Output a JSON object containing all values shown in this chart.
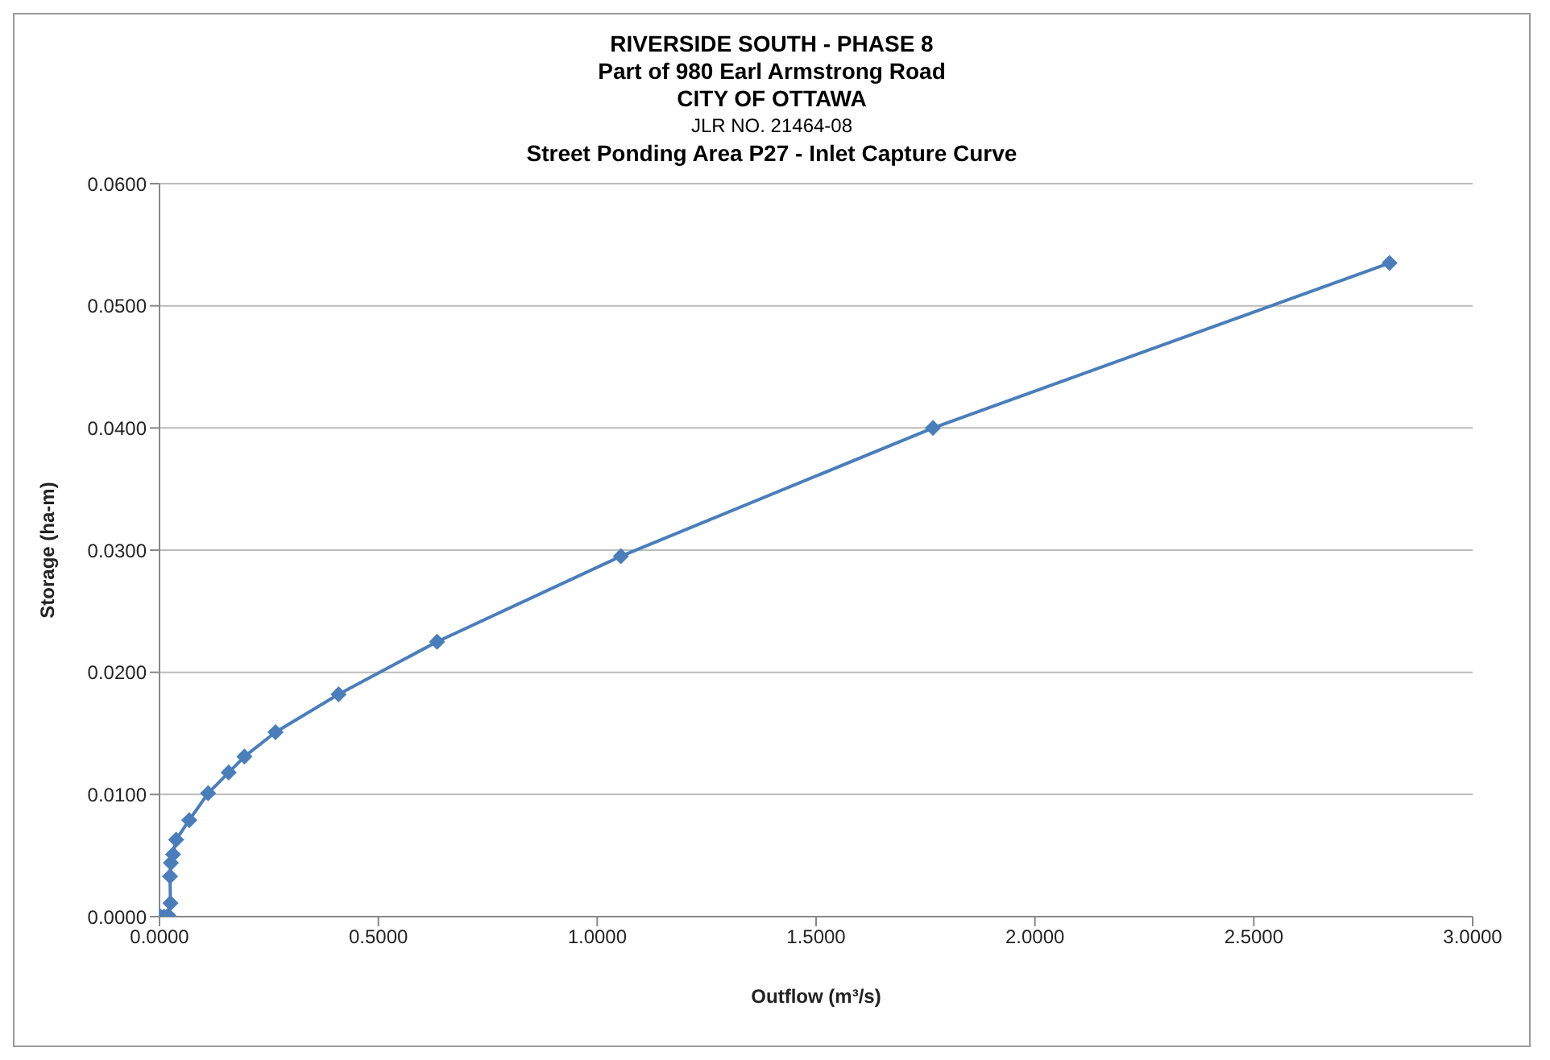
{
  "chart_data": {
    "type": "line",
    "title": "RIVERSIDE SOUTH - PHASE 8",
    "subtitle": "Part of 980 Earl Armstrong Road\nCITY OF OTTAWA\nJLR NO. 21464-08\nStreet Ponding Area P27 - Inlet Capture Curve",
    "xlabel": "Outflow (m³/s)",
    "ylabel": "Storage (ha-m)",
    "series": [
      {
        "color": "#4a7ebb",
        "x": [
          0.002,
          0.01,
          0.02,
          0.025,
          0.024,
          0.026,
          0.031,
          0.038,
          0.068,
          0.111,
          0.158,
          0.194,
          0.265,
          0.409,
          0.634,
          1.054,
          1.767,
          2.81
        ],
        "values": [
          0.0,
          0.0,
          0.0001,
          0.0011,
          0.0033,
          0.0044,
          0.0051,
          0.0063,
          0.0079,
          0.0101,
          0.0118,
          0.0131,
          0.0151,
          0.0182,
          0.0225,
          0.0295,
          0.04,
          0.0535
        ]
      }
    ],
    "xlim": [
      0,
      3
    ],
    "xticks": [
      {
        "value": 0,
        "label": "0.0000"
      },
      {
        "value": 0.5,
        "label": "0.5000"
      },
      {
        "value": 1,
        "label": "1.0000"
      },
      {
        "value": 1.5,
        "label": "1.5000"
      },
      {
        "value": 2,
        "label": "2.0000"
      },
      {
        "value": 2.5,
        "label": "2.5000"
      },
      {
        "value": 3,
        "label": "3.0000"
      }
    ],
    "ylim": [
      0,
      0.06
    ],
    "yticks": [
      {
        "value": 0,
        "label": "0.0000"
      },
      {
        "value": 0.01,
        "label": "0.0100"
      },
      {
        "value": 0.02,
        "label": "0.0200"
      },
      {
        "value": 0.03,
        "label": "0.0300"
      },
      {
        "value": 0.04,
        "label": "0.0400"
      },
      {
        "value": 0.05,
        "label": "0.0500"
      },
      {
        "value": 0.06,
        "label": "0.0600"
      }
    ],
    "grid": "y",
    "marker": "diamond",
    "line_style": "solid",
    "legend": false
  }
}
